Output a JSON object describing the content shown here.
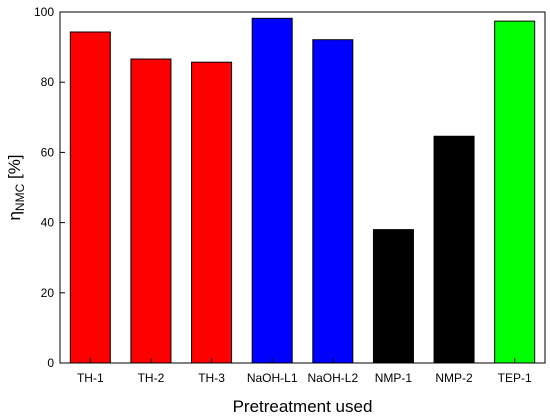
{
  "chart_data": {
    "type": "bar",
    "categories": [
      "TH-1",
      "TH-2",
      "TH-3",
      "NaOH-L1",
      "NaOH-L2",
      "NMP-1",
      "NMP-2",
      "TEP-1"
    ],
    "values": [
      94.3,
      86.6,
      85.7,
      98.2,
      92.1,
      38.0,
      64.6,
      97.4
    ],
    "bar_colors": [
      "#ff0000",
      "#ff0000",
      "#ff0000",
      "#0000ff",
      "#0000ff",
      "#000000",
      "#000000",
      "#00ff00"
    ],
    "title": "",
    "xlabel": "Pretreatment used",
    "ylabel_main": "η",
    "ylabel_sub": "NMC",
    "ylabel_unit": " [%]",
    "ylim": [
      0,
      100
    ],
    "yticks": [
      0,
      20,
      40,
      60,
      80,
      100
    ],
    "grid": false,
    "legend": "none"
  }
}
